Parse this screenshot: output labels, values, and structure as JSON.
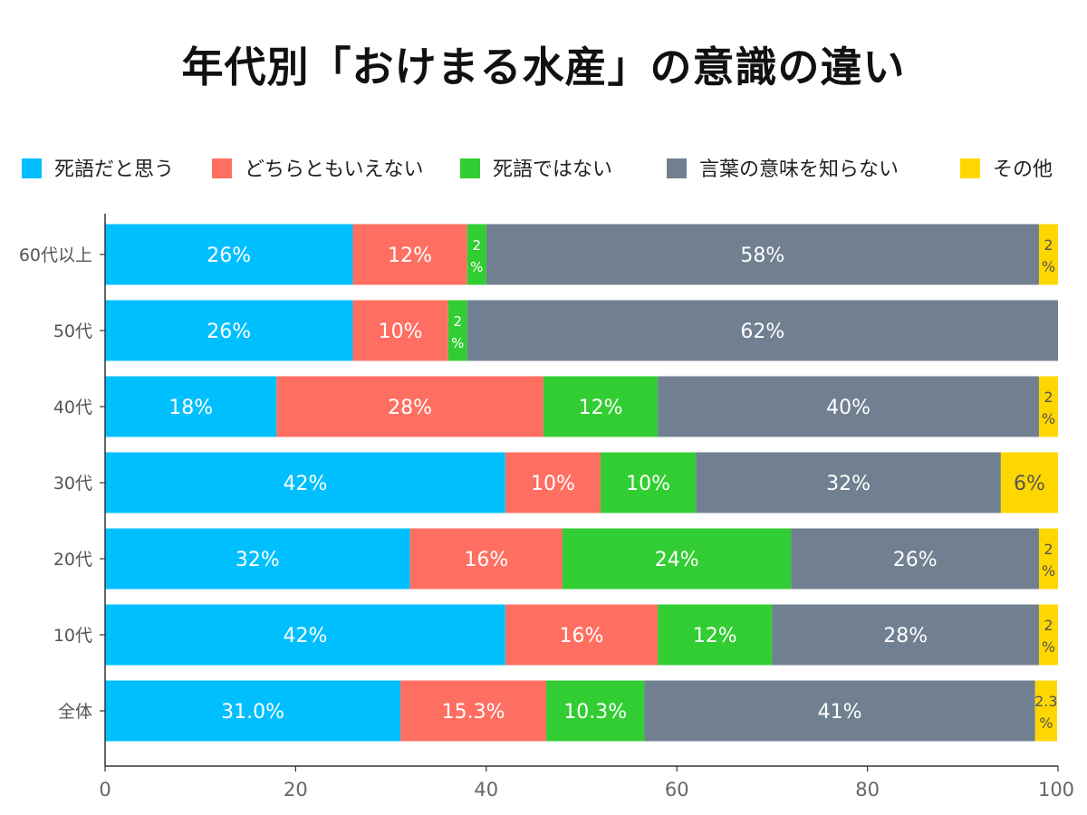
{
  "chart_data": {
    "type": "bar",
    "orientation": "horizontal",
    "stacked": true,
    "title": "年代別「おけまる水産」の意識の違い",
    "xlabel": "",
    "ylabel": "",
    "xlim": [
      0,
      100
    ],
    "xticks": [
      "0",
      "20",
      "40",
      "60",
      "80",
      "100"
    ],
    "legend_position": "top",
    "grid": false,
    "categories": [
      "60代以上",
      "50代",
      "40代",
      "30代",
      "20代",
      "10代",
      "全体"
    ],
    "series": [
      {
        "name": "死語だと思う",
        "color": "#00BFFF",
        "values": [
          26,
          26,
          18,
          42,
          32,
          42,
          31.0
        ],
        "labels": [
          "26%",
          "26%",
          "18%",
          "42%",
          "32%",
          "42%",
          "31.0%"
        ]
      },
      {
        "name": "どちらともいえない",
        "color": "#FF6F61",
        "values": [
          12,
          10,
          28,
          10,
          16,
          16,
          15.3
        ],
        "labels": [
          "12%",
          "10%",
          "28%",
          "10%",
          "16%",
          "16%",
          "15.3%"
        ]
      },
      {
        "name": "死語ではない",
        "color": "#32CD32",
        "values": [
          2,
          2,
          12,
          10,
          24,
          12,
          10.3
        ],
        "labels": [
          "2%",
          "2%",
          "12%",
          "10%",
          "24%",
          "12%",
          "10.3%"
        ]
      },
      {
        "name": "言葉の意味を知らない",
        "color": "#708090",
        "values": [
          58,
          62,
          40,
          32,
          26,
          28,
          41
        ],
        "labels": [
          "58%",
          "62%",
          "40%",
          "32%",
          "26%",
          "28%",
          "41%"
        ]
      },
      {
        "name": "その他",
        "color": "#FFD700",
        "values": [
          2,
          0,
          2,
          6,
          2,
          2,
          2.3
        ],
        "labels": [
          "2%",
          "",
          "2%",
          "6%",
          "2%",
          "2%",
          "2.3%"
        ]
      }
    ]
  }
}
